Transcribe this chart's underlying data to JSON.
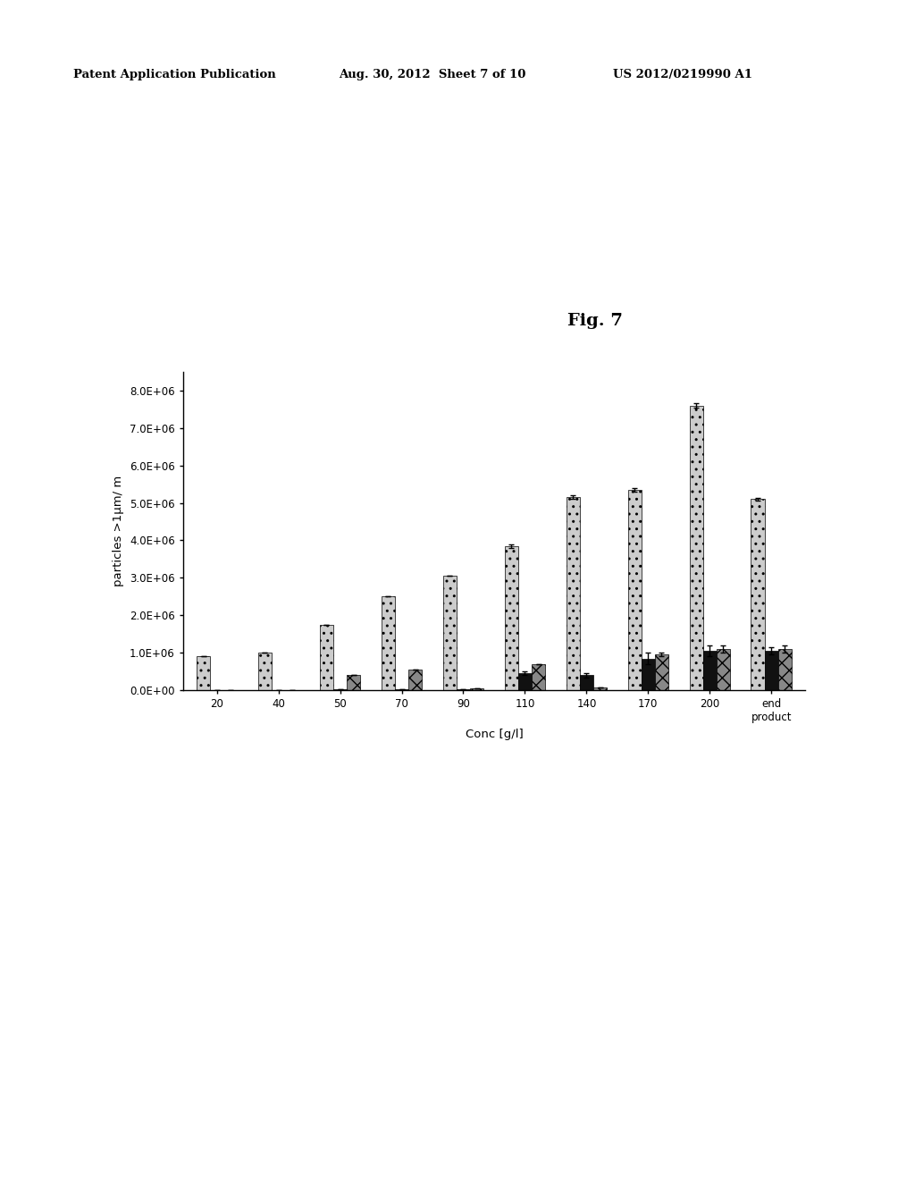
{
  "categories": [
    "20",
    "40",
    "50",
    "70",
    "90",
    "110",
    "140",
    "170",
    "200",
    "end\nproduct"
  ],
  "xlabel": "Conc [g/l]",
  "ylabel": "particles >1μm/ m",
  "ylim": [
    0,
    8500000.0
  ],
  "yticks": [
    0.0,
    1000000.0,
    2000000.0,
    3000000.0,
    4000000.0,
    5000000.0,
    6000000.0,
    7000000.0,
    8000000.0
  ],
  "ytick_labels": [
    "0.0E+00",
    "1.0E+06",
    "2.0E+06",
    "3.0E+06",
    "4.0E+06",
    "5.0E+06",
    "6.0E+06",
    "7.0E+06",
    "8.0E+06"
  ],
  "fig_label": "Fig. 7",
  "series": {
    "dotted_gray": {
      "values": [
        920000.0,
        1000000.0,
        1750000.0,
        2500000.0,
        3050000.0,
        3850000.0,
        5150000.0,
        5350000.0,
        7600000.0,
        5100000.0
      ],
      "errors": [
        0,
        0,
        0,
        0,
        0,
        50000.0,
        50000.0,
        50000.0,
        50000.0,
        30000.0
      ],
      "color": "#cccccc",
      "hatch": ".."
    },
    "black": {
      "values": [
        0,
        0,
        30000.0,
        30000.0,
        30000.0,
        450000.0,
        400000.0,
        850000.0,
        1050000.0,
        1050000.0
      ],
      "errors": [
        0,
        0,
        0,
        0,
        0,
        50000.0,
        50000.0,
        150000.0,
        140000.0,
        100000.0
      ],
      "color": "#111111",
      "hatch": ""
    },
    "dark_gray": {
      "values": [
        0,
        0,
        400000.0,
        550000.0,
        50000.0,
        700000.0,
        70000.0,
        950000.0,
        1100000.0,
        1100000.0
      ],
      "errors": [
        0,
        0,
        0,
        0,
        0,
        0,
        0,
        50000.0,
        100000.0,
        100000.0
      ],
      "color": "#888888",
      "hatch": "xx"
    }
  },
  "bar_width": 0.22,
  "background_color": "#ffffff",
  "header_left": "Patent Application Publication",
  "header_mid": "Aug. 30, 2012  Sheet 7 of 10",
  "header_right": "US 2012/0219990 A1"
}
